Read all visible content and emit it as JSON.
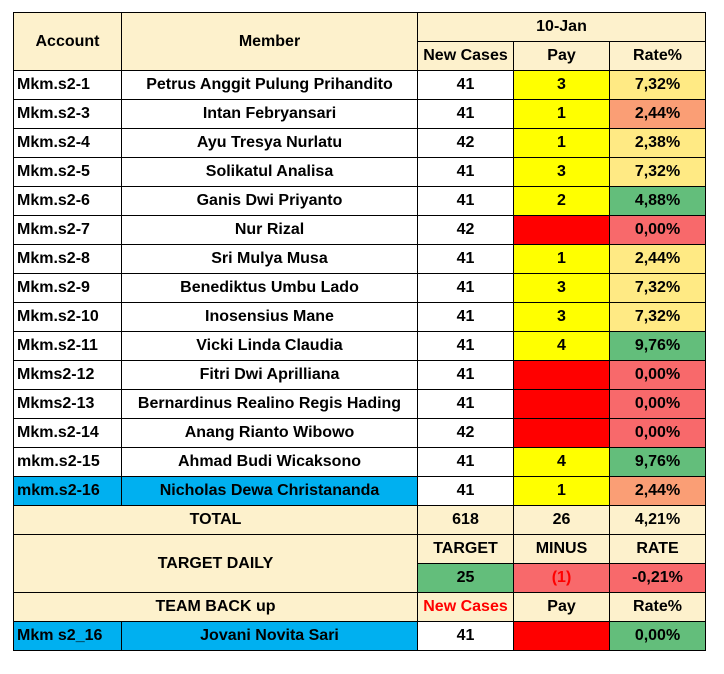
{
  "header": {
    "account": "Account",
    "member": "Member",
    "date": "10-Jan",
    "new_cases": "New Cases",
    "pay": "Pay",
    "rate": "Rate%"
  },
  "rows": [
    {
      "account": "Mkm.s2-1",
      "member": "Petrus Anggit Pulung Prihandito",
      "new_cases": "41",
      "pay": "3",
      "rate": "7,32%"
    },
    {
      "account": "Mkm.s2-3",
      "member": "Intan Febryansari",
      "new_cases": "41",
      "pay": "1",
      "rate": "2,44%"
    },
    {
      "account": "Mkm.s2-4",
      "member": "Ayu Tresya Nurlatu",
      "new_cases": "42",
      "pay": "1",
      "rate": "2,38%"
    },
    {
      "account": "Mkm.s2-5",
      "member": "Solikatul Analisa",
      "new_cases": "41",
      "pay": "3",
      "rate": "7,32%"
    },
    {
      "account": "Mkm.s2-6",
      "member": "Ganis Dwi Priyanto",
      "new_cases": "41",
      "pay": "2",
      "rate": "4,88%"
    },
    {
      "account": "Mkm.s2-7",
      "member": "Nur Rizal",
      "new_cases": "42",
      "pay": "",
      "rate": "0,00%"
    },
    {
      "account": "Mkm.s2-8",
      "member": "Sri Mulya Musa",
      "new_cases": "41",
      "pay": "1",
      "rate": "2,44%"
    },
    {
      "account": "Mkm.s2-9",
      "member": "Benediktus Umbu Lado",
      "new_cases": "41",
      "pay": "3",
      "rate": "7,32%"
    },
    {
      "account": "Mkm.s2-10",
      "member": "Inosensius Mane",
      "new_cases": "41",
      "pay": "3",
      "rate": "7,32%"
    },
    {
      "account": "Mkm.s2-11",
      "member": "Vicki Linda Claudia",
      "new_cases": "41",
      "pay": "4",
      "rate": "9,76%"
    },
    {
      "account": "Mkms2-12",
      "member": "Fitri Dwi Aprilliana",
      "new_cases": "41",
      "pay": "",
      "rate": "0,00%"
    },
    {
      "account": "Mkms2-13",
      "member": "Bernardinus Realino Regis Hading",
      "new_cases": "41",
      "pay": "",
      "rate": "0,00%"
    },
    {
      "account": "Mkm.s2-14",
      "member": "Anang Rianto Wibowo",
      "new_cases": "42",
      "pay": "",
      "rate": "0,00%"
    },
    {
      "account": "mkm.s2-15",
      "member": "Ahmad Budi Wicaksono",
      "new_cases": "41",
      "pay": "4",
      "rate": "9,76%"
    },
    {
      "account": "mkm.s2-16",
      "member": "Nicholas Dewa Christananda",
      "new_cases": "41",
      "pay": "1",
      "rate": "2,44%"
    }
  ],
  "total": {
    "label": "TOTAL",
    "new_cases": "618",
    "pay": "26",
    "rate": "4,21%"
  },
  "target_daily": {
    "label": "TARGET DAILY",
    "target_label": "TARGET",
    "minus_label": "MINUS",
    "rate_label": "RATE",
    "target": "25",
    "minus": "(1)",
    "rate": "-0,21%"
  },
  "team_backup": {
    "label": "TEAM BACK up",
    "new_cases": "New Cases",
    "pay": "Pay",
    "rate": "Rate%"
  },
  "backup_row": {
    "account": "Mkm s2_16",
    "member": "Jovani Novita Sari",
    "new_cases": "41",
    "pay": "",
    "rate": "0,00%"
  },
  "colors": {
    "header_bg": "#fdf1cc",
    "pay_yellow": "#ffff00",
    "pay_empty_red": "#ff0000",
    "highlight_blue": "#00b0f0",
    "rate_green": "#63be7b",
    "rate_yellow": "#ffea84",
    "rate_orange": "#fa9e75",
    "rate_red": "#f8696b"
  }
}
